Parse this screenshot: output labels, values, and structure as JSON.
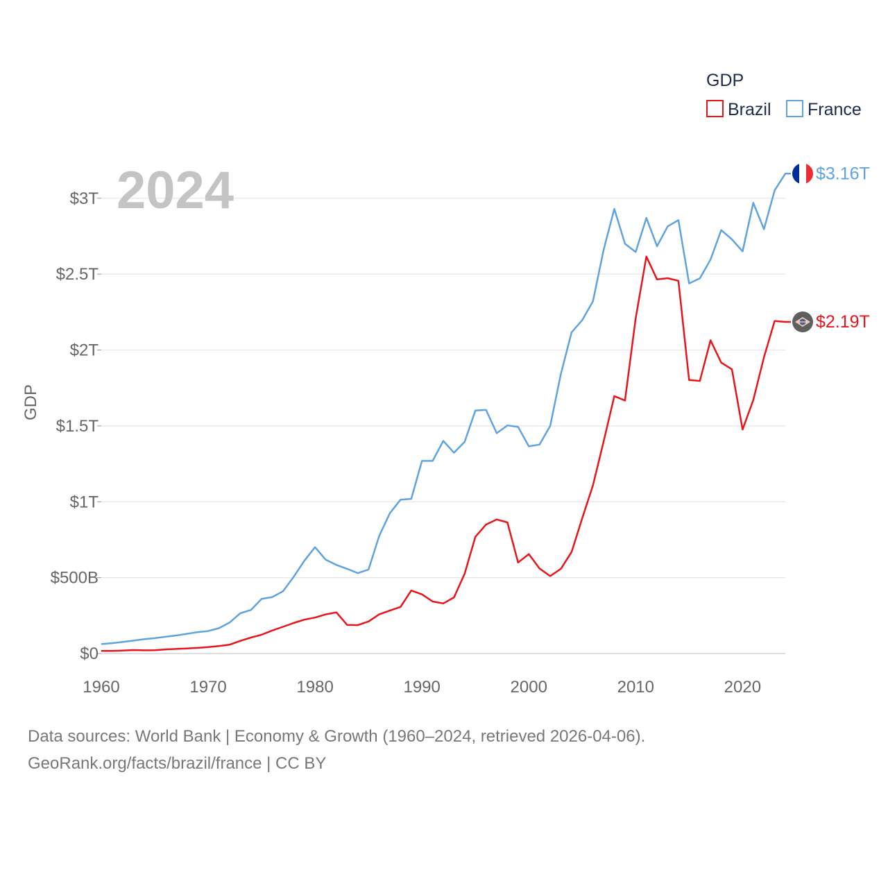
{
  "chart_data": {
    "type": "line",
    "title": "GDP",
    "year_label": "2024",
    "ylabel": "GDP",
    "xlabel": "",
    "xlim": [
      1960,
      2024
    ],
    "ylim": [
      0,
      3300
    ],
    "units": "billions USD",
    "x_ticks": [
      1960,
      1970,
      1980,
      1990,
      2000,
      2010,
      2020
    ],
    "x_tick_labels": [
      "1960",
      "1970",
      "1980",
      "1990",
      "2000",
      "2010",
      "2020"
    ],
    "y_ticks": [
      0,
      500,
      1000,
      1500,
      2000,
      2500,
      3000
    ],
    "y_tick_labels": [
      "$0",
      "$500B",
      "$1T",
      "$1.5T",
      "$2T",
      "$2.5T",
      "$3T"
    ],
    "grid": true,
    "legend": {
      "title": "GDP",
      "position": "top-right"
    },
    "x": [
      1960,
      1961,
      1962,
      1963,
      1964,
      1965,
      1966,
      1967,
      1968,
      1969,
      1970,
      1971,
      1972,
      1973,
      1974,
      1975,
      1976,
      1977,
      1978,
      1979,
      1980,
      1981,
      1982,
      1983,
      1984,
      1985,
      1986,
      1987,
      1988,
      1989,
      1990,
      1991,
      1992,
      1993,
      1994,
      1995,
      1996,
      1997,
      1998,
      1999,
      2000,
      2001,
      2002,
      2003,
      2004,
      2005,
      2006,
      2007,
      2008,
      2009,
      2010,
      2011,
      2012,
      2013,
      2014,
      2015,
      2016,
      2017,
      2018,
      2019,
      2020,
      2021,
      2022,
      2023,
      2024
    ],
    "series": [
      {
        "name": "Brazil",
        "color": "#e8141a",
        "end_label": "$2.19T",
        "flag": "brazil-flag",
        "values": [
          17,
          17,
          19,
          23,
          21,
          22,
          27,
          30,
          33,
          37,
          42,
          49,
          58,
          83,
          105,
          124,
          152,
          176,
          201,
          223,
          237,
          258,
          271,
          189,
          187,
          211,
          258,
          283,
          307,
          415,
          390,
          343,
          330,
          370,
          526,
          769,
          850,
          883,
          864,
          600,
          655,
          560,
          510,
          558,
          669,
          892,
          1108,
          1397,
          1696,
          1667,
          2209,
          2616,
          2465,
          2473,
          2456,
          1802,
          1796,
          2064,
          1917,
          1873,
          1476,
          1670,
          1952,
          2191,
          2185
        ]
      },
      {
        "name": "France",
        "color": "#5ea3e0",
        "end_label": "$3.16T",
        "flag": "france-flag",
        "values": [
          62,
          68,
          76,
          85,
          94,
          101,
          110,
          119,
          130,
          141,
          148,
          167,
          204,
          265,
          287,
          360,
          372,
          410,
          505,
          611,
          701,
          618,
          584,
          558,
          530,
          553,
          775,
          925,
          1014,
          1019,
          1269,
          1269,
          1401,
          1323,
          1395,
          1601,
          1605,
          1452,
          1503,
          1493,
          1365,
          1377,
          1500,
          1843,
          2116,
          2197,
          2321,
          2660,
          2930,
          2700,
          2646,
          2870,
          2684,
          2815,
          2856,
          2439,
          2472,
          2596,
          2790,
          2729,
          2650,
          2970,
          2796,
          3052,
          3162
        ]
      }
    ]
  },
  "footer": {
    "line1": "Data sources: World Bank | Economy & Growth (1960–2024, retrieved 2026-04-06).",
    "line2": "GeoRank.org/facts/brazil/france | CC BY"
  }
}
